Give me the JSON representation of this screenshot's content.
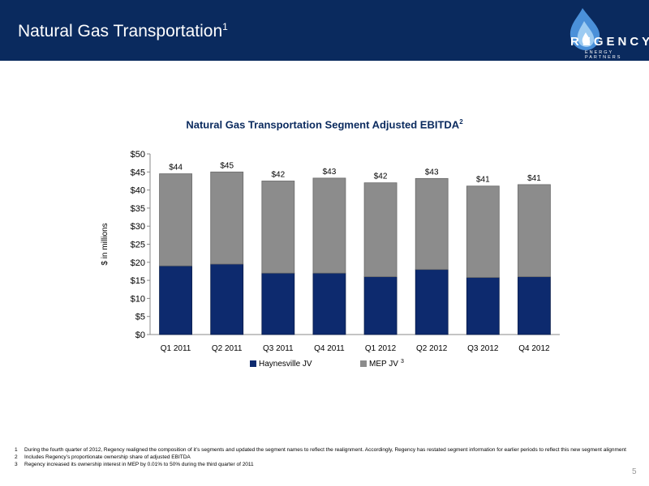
{
  "header": {
    "title": "Natural Gas Transportation",
    "title_sup": "1",
    "logo_text": "REGENCY",
    "logo_subtext": "ENERGY PARTNERS"
  },
  "colors": {
    "header_bg": "#0a2a5e",
    "haynesville": "#0d2a6e",
    "mep": "#8c8c8c",
    "title": "#0a2a5e"
  },
  "chart_data": {
    "type": "bar",
    "stacked": true,
    "title": "Natural Gas Transportation Segment Adjusted EBITDA",
    "title_sup": "2",
    "ylabel": "$ in millions",
    "xlabel": "",
    "categories": [
      "Q1 2011",
      "Q2 2011",
      "Q3 2011",
      "Q4 2011",
      "Q1 2012",
      "Q2 2012",
      "Q3 2012",
      "Q4 2012"
    ],
    "series": [
      {
        "name": "Haynesville JV",
        "values": [
          19,
          19.5,
          17,
          17,
          16,
          18,
          15.8,
          16
        ]
      },
      {
        "name": "MEP JV",
        "name_sup": "3",
        "values": [
          25.5,
          25.5,
          25.5,
          26.3,
          26,
          25.2,
          25.3,
          25.5
        ]
      }
    ],
    "totals_labels": [
      "$44",
      "$45",
      "$42",
      "$43",
      "$42",
      "$43",
      "$41",
      "$41"
    ],
    "y_ticks": [
      0,
      5,
      10,
      15,
      20,
      25,
      30,
      35,
      40,
      45,
      50
    ],
    "y_tick_labels": [
      "$0",
      "$5",
      "$10",
      "$15",
      "$20",
      "$25",
      "$30",
      "$35",
      "$40",
      "$45",
      "$50"
    ],
    "ylim": [
      0,
      50
    ],
    "grid": false,
    "legend": "bottom"
  },
  "footnotes": [
    {
      "num": "1",
      "text": "During the fourth quarter of 2012, Regency realigned the composition of it’s segments and updated the segment names to reflect the realignment. Accordingly, Regency has restated segment information for earlier periods to reflect this new segment alignment"
    },
    {
      "num": "2",
      "text": "Includes Regency’s proportionate ownership share of adjusted EBITDA"
    },
    {
      "num": "3",
      "text": "Regency increased its ownership interest in MEP by 0.01% to 50% during the third quarter of 2011"
    }
  ],
  "page_number": "5"
}
